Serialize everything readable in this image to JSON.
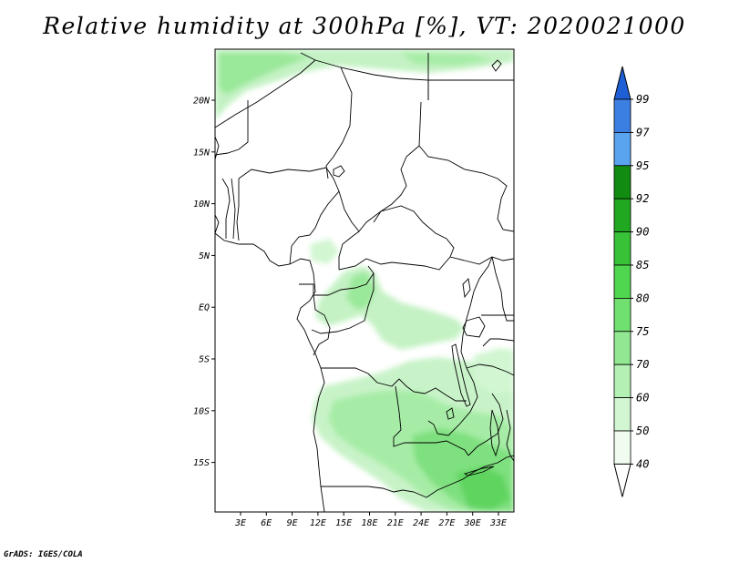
{
  "title": "Relative humidity at 300hPa [%], VT: 2020021000",
  "credit": "GrADS: IGES/COLA",
  "map": {
    "lat_labels": [
      "20N",
      "15N",
      "10N",
      "5N",
      "EQ",
      "5S",
      "10S",
      "15S"
    ],
    "lon_labels": [
      "3E",
      "6E",
      "9E",
      "12E",
      "15E",
      "18E",
      "21E",
      "24E",
      "27E",
      "30E",
      "33E"
    ]
  },
  "colorbar": {
    "levels": [
      "99",
      "97",
      "95",
      "92",
      "90",
      "85",
      "80",
      "75",
      "70",
      "60",
      "50",
      "40"
    ],
    "colors": [
      "#1f5fd6",
      "#3c7fe3",
      "#5aa4ef",
      "#118c11",
      "#21a821",
      "#38c238",
      "#50d750",
      "#70e070",
      "#92e892",
      "#b4f0b4",
      "#d2f6d2",
      "#effcef"
    ]
  }
}
